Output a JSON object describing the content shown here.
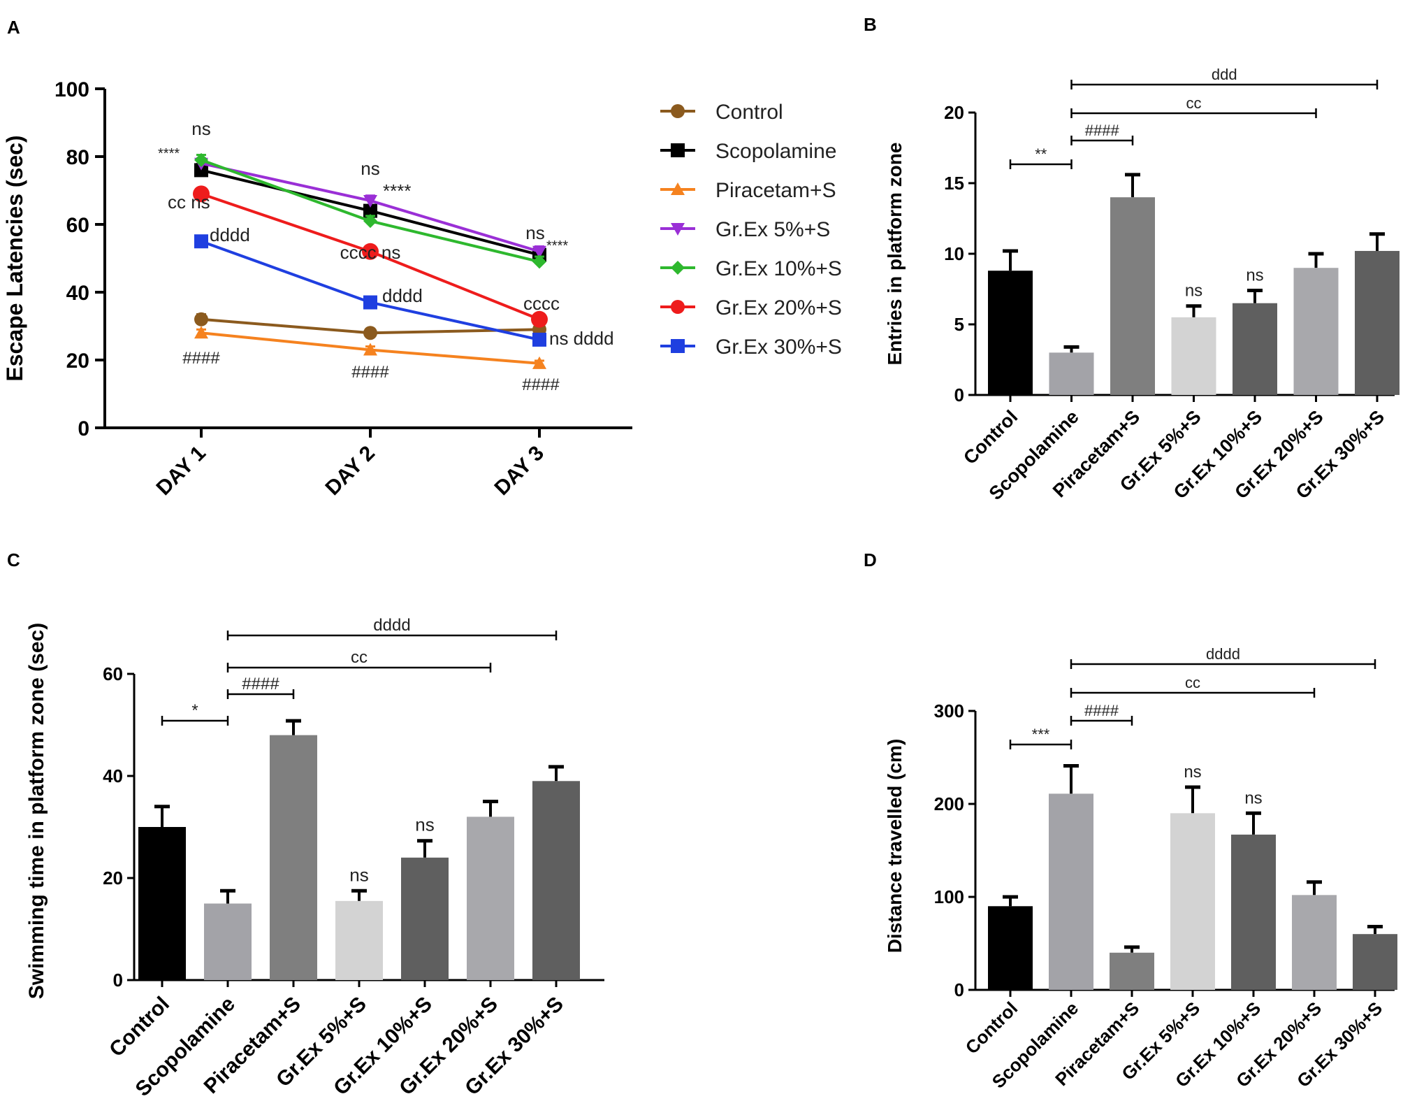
{
  "chart_data": [
    {
      "panel_label": "A",
      "type": "line",
      "title": "",
      "xlabel": "",
      "ylabel": "Escape Latencies (sec)",
      "categories": [
        "DAY 1",
        "DAY 2",
        "DAY 3"
      ],
      "ylim": [
        0,
        100
      ],
      "yticks": [
        0,
        20,
        40,
        60,
        80,
        100
      ],
      "legend_position": "right",
      "series": [
        {
          "name": "Control",
          "color": "#8B5A1E",
          "marker": "circle",
          "values": [
            32,
            28,
            29
          ],
          "errors": [
            1.5,
            1.2,
            1.0
          ],
          "annotations": [
            "",
            "",
            ""
          ]
        },
        {
          "name": "Scopolamine",
          "color": "#000000",
          "marker": "square",
          "values": [
            76,
            64,
            51
          ],
          "errors": [
            1.8,
            1.5,
            1.5
          ],
          "annotations": [
            "****",
            "ns",
            ""
          ]
        },
        {
          "name": "Piracetam+S",
          "color": "#F5821F",
          "marker": "triangle-up",
          "values": [
            28,
            23,
            19
          ],
          "errors": [
            1.0,
            1.0,
            0.8
          ],
          "annotations": [
            "####",
            "####",
            "####"
          ]
        },
        {
          "name": "Gr.Ex 5%+S",
          "color": "#9A2FD6",
          "marker": "triangle-down",
          "values": [
            78,
            67,
            52
          ],
          "errors": [
            1.5,
            1.5,
            1.5
          ],
          "annotations": [
            "ns",
            "****",
            "ns"
          ]
        },
        {
          "name": "Gr.Ex 10%+S",
          "color": "#2EB82E",
          "marker": "diamond",
          "values": [
            79,
            61,
            49
          ],
          "errors": [
            1.5,
            1.5,
            1.5
          ],
          "annotations": [
            "",
            "",
            "****"
          ]
        },
        {
          "name": "Gr.Ex 20%+S",
          "color": "#EE1C1C",
          "marker": "circle",
          "values": [
            69,
            52,
            32
          ],
          "errors": [
            1.5,
            1.5,
            1.5
          ],
          "annotations": [
            "cc  ns",
            "cccc  ns",
            "cccc"
          ]
        },
        {
          "name": "Gr.Ex 30%+S",
          "color": "#1F3FE0",
          "marker": "square",
          "values": [
            55,
            37,
            26
          ],
          "errors": [
            1.5,
            1.5,
            1.5
          ],
          "annotations": [
            "dddd",
            "dddd",
            "ns  dddd"
          ]
        }
      ]
    },
    {
      "panel_label": "B",
      "type": "bar",
      "title": "",
      "xlabel": "",
      "ylabel": "Entries in platform zone",
      "categories": [
        "Control",
        "Scopolamine",
        "Piracetam+S",
        "Gr.Ex 5%+S",
        "Gr.Ex 10%+S",
        "Gr.Ex 20%+S",
        "Gr.Ex 30%+S"
      ],
      "values": [
        8.8,
        3.0,
        14.0,
        5.5,
        6.5,
        9.0,
        10.2
      ],
      "errors": [
        1.4,
        0.4,
        1.6,
        0.8,
        0.9,
        1.0,
        1.2
      ],
      "colors": [
        "#000000",
        "#A3A3A8",
        "#7F7F7F",
        "#D3D3D3",
        "#5F5F5F",
        "#A8A8AC",
        "#5F5F5F"
      ],
      "bar_labels": [
        "",
        "",
        "",
        "ns",
        "ns",
        "",
        ""
      ],
      "ylim": [
        0,
        20
      ],
      "yticks": [
        0,
        5,
        10,
        15,
        20
      ],
      "comparisons": [
        {
          "from": 0,
          "to": 1,
          "label": "**"
        },
        {
          "from": 1,
          "to": 2,
          "label": "####"
        },
        {
          "from": 1,
          "to": 5,
          "label": "cc"
        },
        {
          "from": 1,
          "to": 6,
          "label": "ddd"
        }
      ]
    },
    {
      "panel_label": "C",
      "type": "bar",
      "title": "",
      "xlabel": "",
      "ylabel": "Swimming time in platform zone (sec)",
      "categories": [
        "Control",
        "Scopolamine",
        "Piracetam+S",
        "Gr.Ex 5%+S",
        "Gr.Ex 10%+S",
        "Gr.Ex 20%+S",
        "Gr.Ex 30%+S"
      ],
      "values": [
        30,
        15,
        48,
        15.5,
        24,
        32,
        39
      ],
      "errors": [
        4,
        2.5,
        2.8,
        2,
        3.3,
        3,
        2.8
      ],
      "colors": [
        "#000000",
        "#A3A3A8",
        "#7F7F7F",
        "#D3D3D3",
        "#5F5F5F",
        "#A8A8AC",
        "#5F5F5F"
      ],
      "bar_labels": [
        "",
        "",
        "",
        "ns",
        "ns",
        "",
        ""
      ],
      "ylim": [
        0,
        60
      ],
      "yticks": [
        0,
        20,
        40,
        60
      ],
      "comparisons": [
        {
          "from": 0,
          "to": 1,
          "label": "*"
        },
        {
          "from": 1,
          "to": 2,
          "label": "####"
        },
        {
          "from": 1,
          "to": 5,
          "label": "cc"
        },
        {
          "from": 1,
          "to": 6,
          "label": "dddd"
        }
      ]
    },
    {
      "panel_label": "D",
      "type": "bar",
      "title": "",
      "xlabel": "",
      "ylabel": "Distance travelled (cm)",
      "categories": [
        "Control",
        "Scopolamine",
        "Piracetam+S",
        "Gr.Ex 5%+S",
        "Gr.Ex 10%+S",
        "Gr.Ex 20%+S",
        "Gr.Ex 30%+S"
      ],
      "values": [
        90,
        211,
        40,
        190,
        167,
        102,
        60
      ],
      "errors": [
        10,
        30,
        6,
        28,
        23,
        14,
        8
      ],
      "colors": [
        "#000000",
        "#A3A3A8",
        "#7F7F7F",
        "#D3D3D3",
        "#5F5F5F",
        "#A8A8AC",
        "#5F5F5F"
      ],
      "bar_labels": [
        "",
        "",
        "",
        "ns",
        "ns",
        "",
        ""
      ],
      "ylim": [
        0,
        300
      ],
      "yticks": [
        0,
        100,
        200,
        300
      ],
      "comparisons": [
        {
          "from": 0,
          "to": 1,
          "label": "***"
        },
        {
          "from": 1,
          "to": 2,
          "label": "####"
        },
        {
          "from": 1,
          "to": 5,
          "label": "cc"
        },
        {
          "from": 1,
          "to": 6,
          "label": "dddd"
        }
      ]
    }
  ]
}
